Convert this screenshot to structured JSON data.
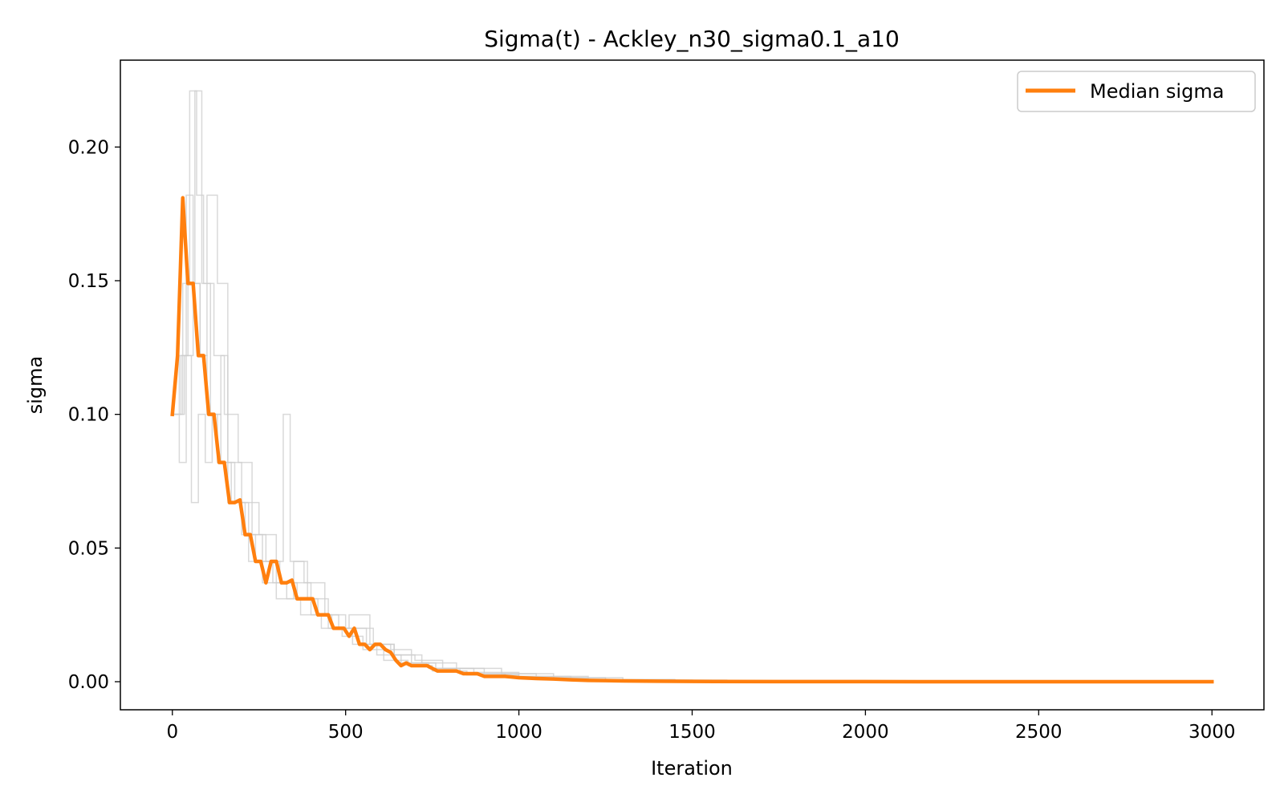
{
  "chart_data": {
    "type": "line",
    "title": "Sigma(t) - Ackley_n30_sigma0.1_a10",
    "xlabel": "Iteration",
    "ylabel": "sigma",
    "xlim": [
      -150,
      3150
    ],
    "ylim": [
      -0.0105,
      0.2325
    ],
    "xticks": [
      0,
      500,
      1000,
      1500,
      2000,
      2500,
      3000
    ],
    "xtick_labels": [
      "0",
      "500",
      "1000",
      "1500",
      "2000",
      "2500",
      "3000"
    ],
    "yticks": [
      0.0,
      0.05,
      0.1,
      0.15,
      0.2
    ],
    "ytick_labels": [
      "0.00",
      "0.05",
      "0.10",
      "0.15",
      "0.20"
    ],
    "grid": false,
    "legend": {
      "location": "top-right",
      "entries": [
        "Median sigma"
      ]
    },
    "colors": {
      "median": "#ff7f0e",
      "runs": "#cccccc"
    },
    "series": [
      {
        "name": "Median sigma",
        "color": "#ff7f0e",
        "x": [
          0,
          15,
          30,
          45,
          60,
          75,
          90,
          105,
          120,
          135,
          150,
          165,
          180,
          195,
          210,
          225,
          240,
          255,
          270,
          285,
          300,
          315,
          330,
          345,
          360,
          375,
          390,
          405,
          420,
          435,
          450,
          465,
          480,
          495,
          510,
          525,
          540,
          555,
          570,
          585,
          600,
          615,
          630,
          645,
          660,
          675,
          690,
          705,
          720,
          735,
          750,
          765,
          780,
          800,
          820,
          840,
          860,
          880,
          900,
          930,
          960,
          1000,
          1050,
          1100,
          1150,
          1200,
          1250,
          1300,
          1400,
          1500,
          1750,
          2000,
          2500,
          3000
        ],
        "y": [
          0.1,
          0.122,
          0.181,
          0.149,
          0.149,
          0.122,
          0.122,
          0.1,
          0.1,
          0.082,
          0.082,
          0.067,
          0.067,
          0.068,
          0.055,
          0.055,
          0.045,
          0.045,
          0.037,
          0.045,
          0.045,
          0.037,
          0.037,
          0.038,
          0.031,
          0.031,
          0.031,
          0.031,
          0.025,
          0.025,
          0.025,
          0.02,
          0.02,
          0.02,
          0.017,
          0.02,
          0.014,
          0.014,
          0.012,
          0.014,
          0.014,
          0.012,
          0.011,
          0.008,
          0.006,
          0.007,
          0.006,
          0.006,
          0.006,
          0.006,
          0.005,
          0.004,
          0.004,
          0.004,
          0.004,
          0.003,
          0.003,
          0.003,
          0.002,
          0.002,
          0.002,
          0.0015,
          0.0012,
          0.001,
          0.0007,
          0.0005,
          0.0004,
          0.0003,
          0.0002,
          0.0001,
          5e-05,
          2e-05,
          1e-05,
          0.0
        ]
      },
      {
        "color": "#cccccc",
        "x": [
          0,
          20,
          20,
          40,
          40,
          60,
          60,
          80,
          80,
          100,
          100,
          130,
          130,
          170,
          170,
          210,
          210,
          260,
          260,
          310,
          310,
          360,
          360,
          420,
          420,
          480,
          480,
          560,
          560,
          640,
          640,
          720,
          720,
          820,
          820,
          950,
          950,
          1100,
          1100,
          1300,
          1300,
          1600,
          1600,
          3000
        ],
        "y": [
          0.1,
          0.1,
          0.122,
          0.122,
          0.182,
          0.182,
          0.149,
          0.149,
          0.122,
          0.122,
          0.1,
          0.1,
          0.082,
          0.082,
          0.067,
          0.067,
          0.055,
          0.055,
          0.045,
          0.045,
          0.037,
          0.037,
          0.031,
          0.031,
          0.025,
          0.025,
          0.02,
          0.02,
          0.014,
          0.014,
          0.01,
          0.01,
          0.007,
          0.007,
          0.005,
          0.005,
          0.003,
          0.003,
          0.0015,
          0.0015,
          0.0006,
          0.0006,
          0.0001,
          0.0001
        ]
      },
      {
        "color": "#cccccc",
        "x": [
          0,
          30,
          30,
          50,
          50,
          70,
          70,
          90,
          90,
          120,
          120,
          150,
          150,
          190,
          190,
          230,
          230,
          270,
          270,
          320,
          320,
          340,
          340,
          380,
          380,
          440,
          440,
          500,
          500,
          580,
          580,
          640,
          640,
          700,
          700,
          780,
          780,
          900,
          900,
          1050,
          1050,
          1250,
          1250,
          1500,
          1500,
          3000
        ],
        "y": [
          0.1,
          0.1,
          0.149,
          0.149,
          0.221,
          0.221,
          0.182,
          0.182,
          0.149,
          0.149,
          0.122,
          0.122,
          0.1,
          0.1,
          0.082,
          0.082,
          0.055,
          0.055,
          0.045,
          0.045,
          0.1,
          0.1,
          0.045,
          0.045,
          0.037,
          0.037,
          0.025,
          0.025,
          0.02,
          0.02,
          0.014,
          0.014,
          0.01,
          0.01,
          0.008,
          0.008,
          0.005,
          0.005,
          0.003,
          0.003,
          0.0015,
          0.0015,
          0.0006,
          0.0006,
          0.0002,
          0.0002
        ]
      },
      {
        "color": "#cccccc",
        "x": [
          0,
          25,
          25,
          45,
          45,
          65,
          65,
          85,
          85,
          110,
          110,
          140,
          140,
          160,
          160,
          200,
          200,
          240,
          240,
          290,
          290,
          330,
          330,
          370,
          370,
          430,
          430,
          490,
          490,
          550,
          550,
          610,
          610,
          680,
          680,
          750,
          750,
          850,
          850,
          1000,
          1000,
          1200,
          1200,
          1500,
          1500,
          3000
        ],
        "y": [
          0.1,
          0.1,
          0.122,
          0.122,
          0.149,
          0.149,
          0.221,
          0.221,
          0.149,
          0.149,
          0.1,
          0.1,
          0.122,
          0.122,
          0.067,
          0.067,
          0.055,
          0.055,
          0.045,
          0.045,
          0.037,
          0.037,
          0.031,
          0.031,
          0.025,
          0.025,
          0.02,
          0.02,
          0.017,
          0.017,
          0.012,
          0.012,
          0.008,
          0.008,
          0.006,
          0.006,
          0.004,
          0.004,
          0.0025,
          0.0025,
          0.0012,
          0.0012,
          0.0005,
          0.0005,
          0.0001,
          0.0001
        ]
      },
      {
        "color": "#cccccc",
        "x": [
          0,
          20,
          20,
          40,
          40,
          55,
          55,
          75,
          75,
          95,
          95,
          115,
          115,
          140,
          140,
          180,
          180,
          220,
          220,
          260,
          260,
          300,
          300,
          350,
          350,
          400,
          400,
          460,
          460,
          520,
          520,
          590,
          590,
          660,
          660,
          740,
          740,
          830,
          830,
          960,
          960,
          1150,
          1150,
          1450,
          1450,
          3000
        ],
        "y": [
          0.1,
          0.1,
          0.082,
          0.082,
          0.122,
          0.122,
          0.067,
          0.067,
          0.1,
          0.1,
          0.082,
          0.082,
          0.1,
          0.1,
          0.082,
          0.082,
          0.067,
          0.067,
          0.045,
          0.045,
          0.037,
          0.037,
          0.031,
          0.031,
          0.037,
          0.037,
          0.025,
          0.025,
          0.02,
          0.02,
          0.014,
          0.014,
          0.01,
          0.01,
          0.007,
          0.007,
          0.005,
          0.005,
          0.003,
          0.003,
          0.002,
          0.002,
          0.0008,
          0.0008,
          0.0002,
          0.0002
        ]
      },
      {
        "color": "#cccccc",
        "x": [
          0,
          35,
          35,
          60,
          60,
          80,
          80,
          100,
          100,
          130,
          130,
          160,
          160,
          200,
          200,
          250,
          250,
          300,
          300,
          350,
          350,
          390,
          390,
          450,
          450,
          510,
          510,
          570,
          570,
          630,
          630,
          690,
          690,
          760,
          760,
          870,
          870,
          1000,
          1000,
          1200,
          1200,
          1450,
          1450,
          3000
        ],
        "y": [
          0.1,
          0.1,
          0.122,
          0.122,
          0.149,
          0.149,
          0.122,
          0.122,
          0.182,
          0.182,
          0.149,
          0.149,
          0.082,
          0.082,
          0.067,
          0.067,
          0.055,
          0.055,
          0.037,
          0.037,
          0.045,
          0.045,
          0.031,
          0.031,
          0.02,
          0.02,
          0.025,
          0.025,
          0.014,
          0.014,
          0.012,
          0.012,
          0.007,
          0.007,
          0.005,
          0.005,
          0.0035,
          0.0035,
          0.002,
          0.002,
          0.0008,
          0.0008,
          0.0001,
          0.0001
        ]
      }
    ]
  }
}
